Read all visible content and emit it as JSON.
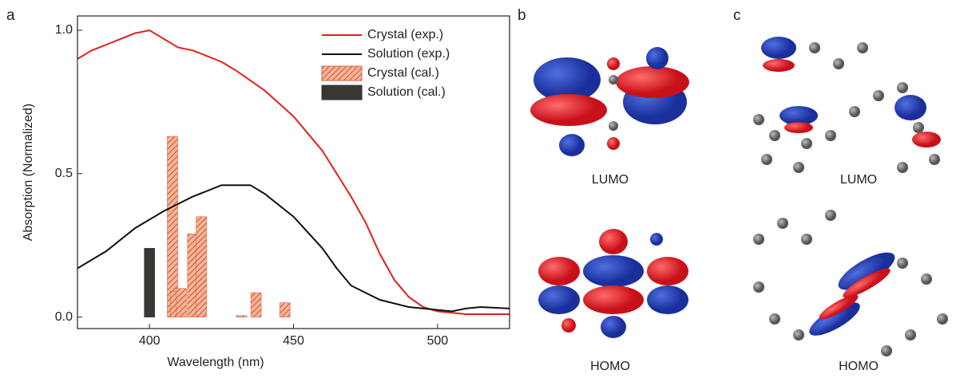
{
  "chart_data": {
    "type": "line",
    "xlabel": "Wavelength (nm)",
    "ylabel": "Absorption (Normalized)",
    "xlim": [
      375,
      525
    ],
    "ylim": [
      -0.04,
      1.05
    ],
    "xticks": [
      400,
      450,
      500
    ],
    "yticks": [
      {
        "value": 0,
        "label": "0.0"
      },
      {
        "value": 0.5,
        "label": "0.5"
      },
      {
        "value": 1,
        "label": "1.0"
      }
    ],
    "legend": "upper right",
    "series": [
      {
        "name": "Crystal (exp.)",
        "color": "#e0201b",
        "type": "line",
        "x": [
          375,
          380,
          385,
          390,
          395,
          400,
          405,
          410,
          415,
          420,
          425,
          430,
          440,
          450,
          460,
          470,
          475,
          480,
          485,
          490,
          495,
          500,
          510,
          525
        ],
        "values": [
          0.9,
          0.93,
          0.95,
          0.97,
          0.99,
          1.0,
          0.97,
          0.94,
          0.93,
          0.91,
          0.89,
          0.86,
          0.79,
          0.7,
          0.58,
          0.42,
          0.33,
          0.22,
          0.13,
          0.07,
          0.035,
          0.02,
          0.01,
          0.01
        ]
      },
      {
        "name": "Solution (exp.)",
        "color": "#111111",
        "type": "line",
        "x": [
          375,
          385,
          395,
          405,
          415,
          425,
          435,
          440,
          450,
          460,
          465,
          470,
          480,
          490,
          500,
          505,
          510,
          515,
          525
        ],
        "values": [
          0.17,
          0.23,
          0.31,
          0.37,
          0.42,
          0.46,
          0.46,
          0.43,
          0.35,
          0.24,
          0.17,
          0.11,
          0.06,
          0.035,
          0.025,
          0.02,
          0.03,
          0.035,
          0.03
        ]
      },
      {
        "name": "Crystal (cal.)",
        "color": "#e0603a",
        "type": "bar",
        "hatch": true,
        "x": [
          408,
          409,
          411,
          415,
          418,
          432,
          437,
          447
        ],
        "values": [
          0.63,
          0.09,
          0.1,
          0.29,
          0.35,
          0.005,
          0.085,
          0.05
        ]
      },
      {
        "name": "Solution (cal.)",
        "color": "#3a3633",
        "type": "bar",
        "hatch": false,
        "x": [
          400
        ],
        "values": [
          0.24
        ]
      }
    ]
  },
  "panels": {
    "a": "a",
    "b": "b",
    "c": "c"
  },
  "orbitals": {
    "b_top": "LUMO",
    "b_bottom": "HOMO",
    "c_top": "LUMO",
    "c_bottom": "HOMO"
  }
}
